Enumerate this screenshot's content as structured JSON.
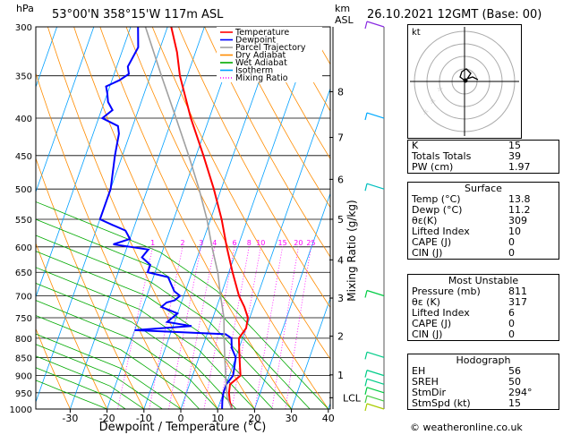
{
  "header": {
    "location": "53°00'N  358°15'W  117m  ASL",
    "datetime": "26.10.2021  12GMT  (Base: 00)",
    "hpa_label": "hPa",
    "km_label": "km",
    "asl_label": "ASL"
  },
  "legend": [
    "Temperature",
    "Dewpoint",
    "Parcel Trajectory",
    "Dry Adiabat",
    "Wet Adiabat",
    "Isotherm",
    "Mixing Ratio"
  ],
  "colors": {
    "temperature": "#ff0000",
    "dewpoint": "#0000ff",
    "parcel": "#a0a0a0",
    "dry_adiabat": "#ff8c00",
    "wet_adiabat": "#00aa00",
    "isotherm": "#00a0ff",
    "mixing_ratio": "#ff00ff"
  },
  "chart_data": {
    "type": "line",
    "xlabel": "Dewpoint / Temperature (°C)",
    "ylabel_right": "Mixing Ratio (g/kg)",
    "x_ticks": [
      -30,
      -20,
      -10,
      0,
      10,
      20,
      30,
      40
    ],
    "xlim": [
      -40,
      40
    ],
    "pressure_levels": [
      300,
      350,
      400,
      450,
      500,
      550,
      600,
      650,
      700,
      750,
      800,
      850,
      900,
      950,
      1000
    ],
    "km_ticks": [
      {
        "km": "1",
        "p": 898
      },
      {
        "km": "2",
        "p": 795
      },
      {
        "km": "3",
        "p": 705
      },
      {
        "km": "4",
        "p": 625
      },
      {
        "km": "5",
        "p": 550
      },
      {
        "km": "6",
        "p": 485
      },
      {
        "km": "7",
        "p": 425
      },
      {
        "km": "8",
        "p": 368
      }
    ],
    "lcl": {
      "label": "LCL",
      "p": 965
    },
    "mixing_ratio_labels": [
      "1",
      "2",
      "3",
      "4",
      "6",
      "8",
      "10",
      "15",
      "20",
      "25"
    ],
    "series": [
      {
        "name": "Temperature",
        "points": [
          [
            1000,
            13.8
          ],
          [
            975,
            12.5
          ],
          [
            950,
            11.5
          ],
          [
            925,
            11
          ],
          [
            900,
            13
          ],
          [
            875,
            12
          ],
          [
            850,
            11
          ],
          [
            825,
            10
          ],
          [
            800,
            9
          ],
          [
            775,
            10
          ],
          [
            750,
            9.5
          ],
          [
            725,
            7.5
          ],
          [
            700,
            5
          ],
          [
            650,
            1
          ],
          [
            600,
            -3
          ],
          [
            550,
            -7
          ],
          [
            500,
            -12
          ],
          [
            450,
            -18
          ],
          [
            400,
            -25
          ],
          [
            350,
            -32
          ],
          [
            325,
            -35
          ],
          [
            300,
            -39
          ]
        ]
      },
      {
        "name": "Dewpoint",
        "points": [
          [
            1000,
            11.2
          ],
          [
            975,
            10.5
          ],
          [
            950,
            10
          ],
          [
            925,
            10
          ],
          [
            900,
            11
          ],
          [
            875,
            10.5
          ],
          [
            850,
            10
          ],
          [
            825,
            8
          ],
          [
            800,
            7
          ],
          [
            790,
            5
          ],
          [
            780,
            -20
          ],
          [
            770,
            -5
          ],
          [
            760,
            -12
          ],
          [
            740,
            -10
          ],
          [
            725,
            -15
          ],
          [
            715,
            -14
          ],
          [
            710,
            -12
          ],
          [
            700,
            -11
          ],
          [
            690,
            -13
          ],
          [
            660,
            -16
          ],
          [
            650,
            -22
          ],
          [
            635,
            -22
          ],
          [
            620,
            -25
          ],
          [
            605,
            -24
          ],
          [
            595,
            -34
          ],
          [
            585,
            -30
          ],
          [
            570,
            -32
          ],
          [
            560,
            -36
          ],
          [
            550,
            -40
          ],
          [
            500,
            -40
          ],
          [
            450,
            -42
          ],
          [
            420,
            -43
          ],
          [
            410,
            -44
          ],
          [
            400,
            -49
          ],
          [
            390,
            -47
          ],
          [
            380,
            -49
          ],
          [
            370,
            -50
          ],
          [
            362,
            -51
          ],
          [
            355,
            -48
          ],
          [
            348,
            -46
          ],
          [
            340,
            -47
          ],
          [
            320,
            -46
          ],
          [
            300,
            -48
          ]
        ]
      },
      {
        "name": "Parcel Trajectory",
        "points": [
          [
            1000,
            13.8
          ],
          [
            965,
            11.5
          ],
          [
            900,
            9
          ],
          [
            850,
            7
          ],
          [
            800,
            5
          ],
          [
            750,
            3
          ],
          [
            700,
            0
          ],
          [
            650,
            -3
          ],
          [
            600,
            -7
          ],
          [
            550,
            -11
          ],
          [
            500,
            -16
          ],
          [
            450,
            -22
          ],
          [
            400,
            -29
          ],
          [
            350,
            -37
          ],
          [
            300,
            -46
          ]
        ]
      }
    ]
  },
  "hodograph": {
    "label": "kt"
  },
  "indices": {
    "rows": [
      [
        "K",
        "15"
      ],
      [
        "Totals Totals",
        "39"
      ],
      [
        "PW (cm)",
        "1.97"
      ]
    ],
    "surface": {
      "title": "Surface",
      "rows": [
        [
          "Temp (°C)",
          "13.8"
        ],
        [
          "Dewp (°C)",
          "11.2"
        ],
        [
          "θε(K)",
          "309"
        ],
        [
          "Lifted Index",
          "10"
        ],
        [
          "CAPE (J)",
          "0"
        ],
        [
          "CIN (J)",
          "0"
        ]
      ]
    },
    "unstable": {
      "title": "Most Unstable",
      "rows": [
        [
          "Pressure (mb)",
          "811"
        ],
        [
          "θε (K)",
          "317"
        ],
        [
          "Lifted Index",
          "6"
        ],
        [
          "CAPE (J)",
          "0"
        ],
        [
          "CIN (J)",
          "0"
        ]
      ]
    },
    "hodo": {
      "title": "Hodograph",
      "rows": [
        [
          "EH",
          "56"
        ],
        [
          "SREH",
          "50"
        ],
        [
          "StmDir",
          "294°"
        ],
        [
          "StmSpd (kt)",
          "15"
        ]
      ]
    }
  },
  "footer": "© weatheronline.co.uk"
}
